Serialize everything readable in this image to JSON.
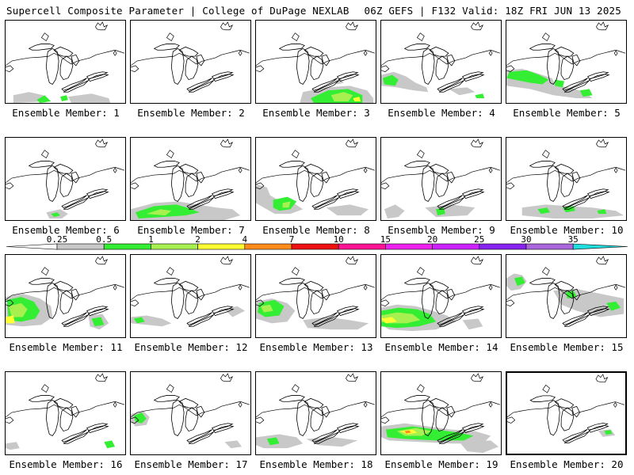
{
  "header": {
    "title": "Supercell Composite Parameter | College of DuPage NEXLAB",
    "run_info": "06Z GEFS | F132 Valid: 18Z FRI JUN 13 2025"
  },
  "colorbar": {
    "labels": [
      "0.25",
      "0.5",
      "1",
      "2",
      "4",
      "7",
      "10",
      "15",
      "20",
      "25",
      "30",
      "35"
    ],
    "colors": [
      "#ffffff",
      "#c8c8c8",
      "#33ee33",
      "#a8f050",
      "#ffff33",
      "#ff8c1a",
      "#ee1111",
      "#ff1493",
      "#ee22ee",
      "#cc22ff",
      "#8822ee",
      "#aa66dd",
      "#22dddd"
    ]
  },
  "members": [
    {
      "label": "Ensemble Member: 1",
      "num": 1
    },
    {
      "label": "Ensemble Member: 2",
      "num": 2
    },
    {
      "label": "Ensemble Member: 3",
      "num": 3
    },
    {
      "label": "Ensemble Member: 4",
      "num": 4
    },
    {
      "label": "Ensemble Member: 5",
      "num": 5
    },
    {
      "label": "Ensemble Member: 6",
      "num": 6
    },
    {
      "label": "Ensemble Member: 7",
      "num": 7
    },
    {
      "label": "Ensemble Member: 8",
      "num": 8
    },
    {
      "label": "Ensemble Member: 9",
      "num": 9
    },
    {
      "label": "Ensemble Member: 10",
      "num": 10
    },
    {
      "label": "Ensemble Member: 11",
      "num": 11
    },
    {
      "label": "Ensemble Member: 12",
      "num": 12
    },
    {
      "label": "Ensemble Member: 13",
      "num": 13
    },
    {
      "label": "Ensemble Member: 14",
      "num": 14
    },
    {
      "label": "Ensemble Member: 15",
      "num": 15
    },
    {
      "label": "Ensemble Member: 16",
      "num": 16
    },
    {
      "label": "Ensemble Member: 17",
      "num": 17
    },
    {
      "label": "Ensemble Member: 18",
      "num": 18
    },
    {
      "label": "Ensemble Member: 19",
      "num": 19
    },
    {
      "label": "Ensemble Member: 20",
      "num": 20
    }
  ]
}
